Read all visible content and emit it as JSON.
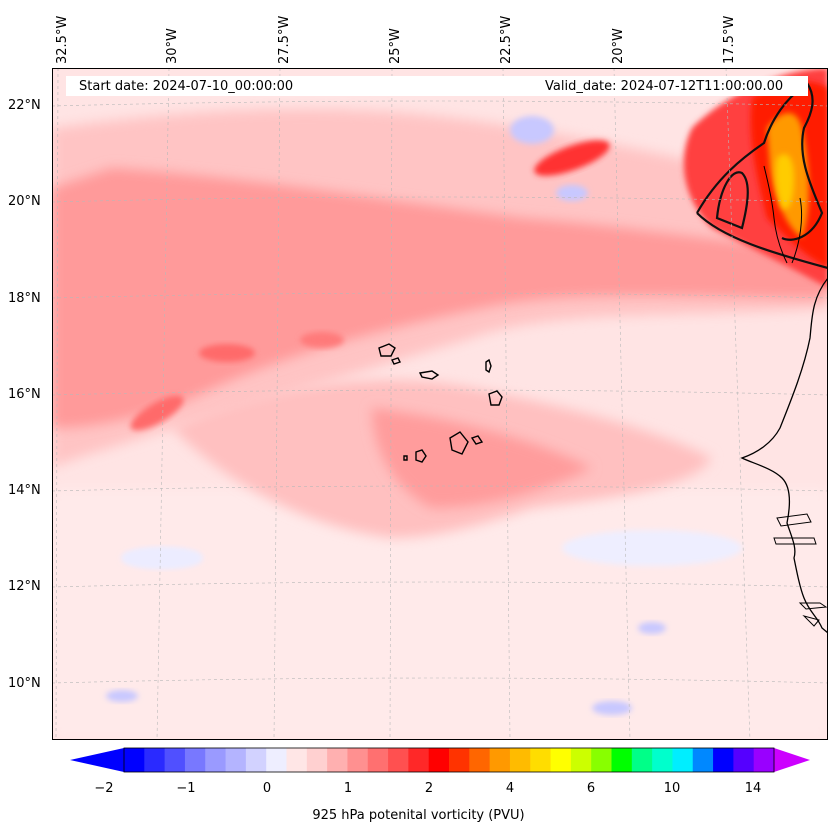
{
  "header": {
    "start_date": "Start date: 2024-07-10_00:00:00",
    "valid_date": "Valid_date: 2024-07-12T11:00:00.00"
  },
  "map": {
    "lon_labels": [
      "32.5°W",
      "30°W",
      "27.5°W",
      "25°W",
      "22.5°W",
      "20°W",
      "17.5°W"
    ],
    "lat_labels": [
      "22°N",
      "20°N",
      "18°N",
      "16°N",
      "14°N",
      "12°N",
      "10°N"
    ],
    "background_color": "#ffd7d7",
    "land_features": [
      "Cape Verde islands",
      "West African coast"
    ]
  },
  "colorbar": {
    "label": "925 hPa potenital vorticity (PVU)",
    "tick_labels": [
      "−2",
      "−1",
      "0",
      "1",
      "2",
      "4",
      "6",
      "10",
      "14"
    ],
    "colors": [
      "#0000ff",
      "#2a2aff",
      "#5050ff",
      "#7878ff",
      "#9a9aff",
      "#b4b4ff",
      "#d2d2ff",
      "#eeeeff",
      "#ffe6e6",
      "#ffd0d0",
      "#ffb0b0",
      "#ff9090",
      "#ff7070",
      "#ff5050",
      "#ff2828",
      "#ff0000",
      "#ff3300",
      "#ff6600",
      "#ff9900",
      "#ffbb00",
      "#ffdd00",
      "#ffff00",
      "#ccff00",
      "#88ff00",
      "#00ff00",
      "#00ff88",
      "#00ffcc",
      "#00eeff",
      "#0088ff",
      "#0000ff",
      "#5500ff",
      "#9900ff"
    ],
    "extend_low_color": "#0000ff",
    "extend_high_color": "#cc00ff"
  }
}
